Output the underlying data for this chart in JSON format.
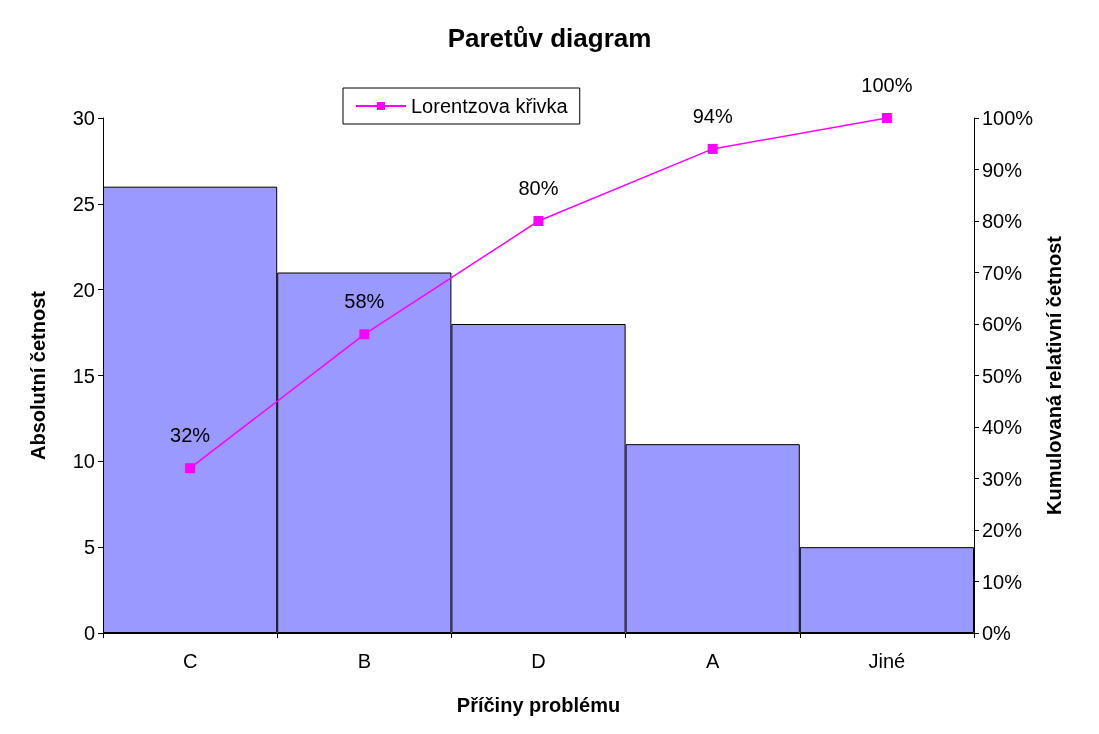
{
  "chart_data": {
    "type": "bar",
    "title": "Paretův diagram",
    "xlabel": "Příčiny problému",
    "ylabel": "Absolutní četnost",
    "y2label": "Kumulovaná relativní četnost",
    "categories": [
      "C",
      "B",
      "D",
      "A",
      "Jiné"
    ],
    "series": [
      {
        "color": "#9999ff",
        "values": [
          26,
          21,
          18,
          11,
          5
        ]
      },
      {
        "type": "line",
        "name": "Lorentzova křivka",
        "color": "#ff00ff",
        "axis": "y2",
        "marker": "square",
        "values": [
          32,
          58,
          80,
          94,
          100
        ],
        "value_labels": [
          "32%",
          "58%",
          "80%",
          "94%",
          "100%"
        ]
      }
    ],
    "ylim": [
      0,
      30
    ],
    "yticks": [
      0,
      5,
      10,
      15,
      20,
      25,
      30
    ],
    "y2lim": [
      0,
      100
    ],
    "y2ticks": [
      {
        "value": 0,
        "label": "0%"
      },
      {
        "value": 10,
        "label": "10%"
      },
      {
        "value": 20,
        "label": "20%"
      },
      {
        "value": 30,
        "label": "30%"
      },
      {
        "value": 40,
        "label": "40%"
      },
      {
        "value": 50,
        "label": "50%"
      },
      {
        "value": 60,
        "label": "60%"
      },
      {
        "value": 70,
        "label": "70%"
      },
      {
        "value": 80,
        "label": "80%"
      },
      {
        "value": 90,
        "label": "90%"
      },
      {
        "value": 100,
        "label": "100%"
      }
    ],
    "grid": false,
    "legend": "top"
  }
}
